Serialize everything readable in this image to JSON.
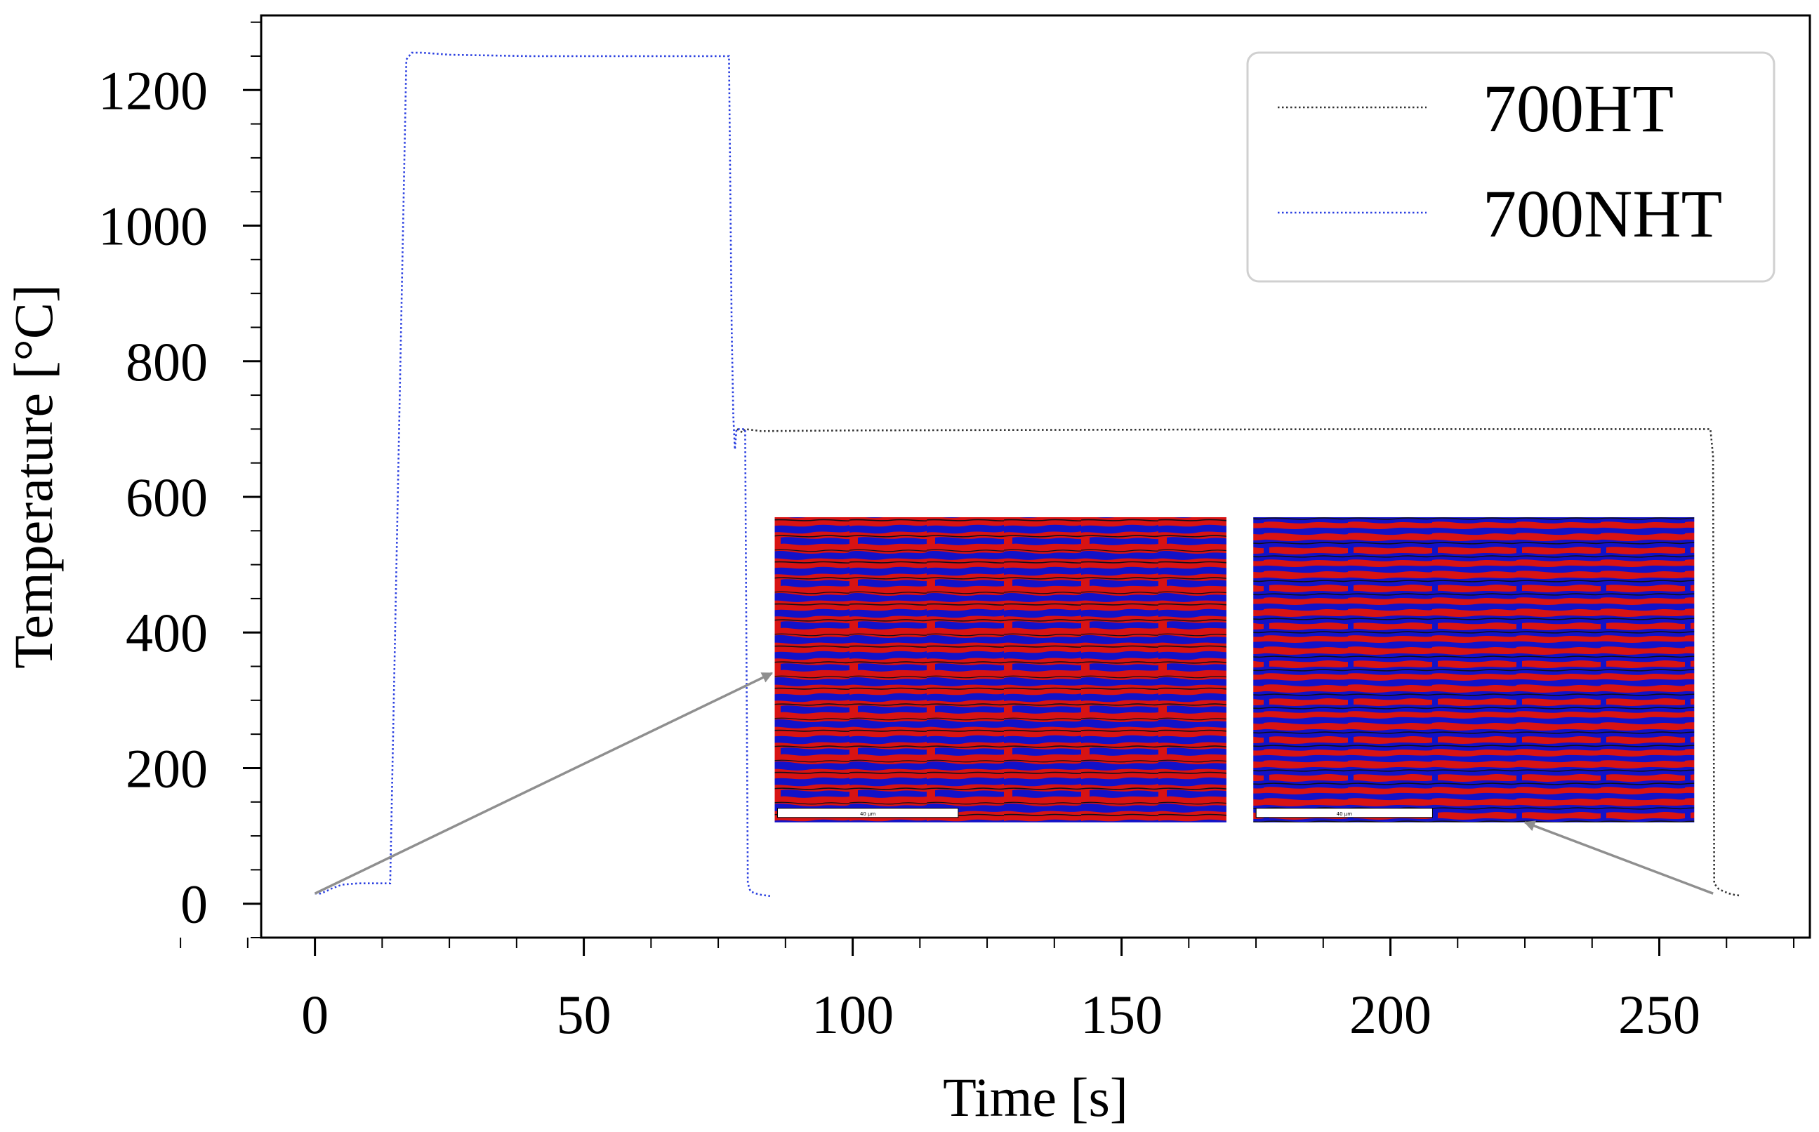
{
  "chart_data": {
    "type": "line",
    "title": "",
    "xlabel": "Time [s]",
    "ylabel": "Temperature [°C]",
    "xlim": [
      -10,
      278
    ],
    "ylim": [
      -50,
      1310
    ],
    "xticks": [
      0,
      50,
      100,
      150,
      200,
      250
    ],
    "yticks": [
      0,
      200,
      400,
      600,
      800,
      1000,
      1200
    ],
    "grid": false,
    "legend_position": "top-right",
    "series": [
      {
        "name": "700HT",
        "color": "#333333",
        "line_style": "dotted",
        "x": [
          78.5,
          79.5,
          80,
          83,
          100,
          150,
          200,
          250,
          259.5,
          260,
          260.2,
          261,
          262,
          263,
          264,
          265
        ],
        "y": [
          700,
          695,
          700,
          697,
          698,
          699,
          700,
          700,
          700,
          660,
          30,
          22,
          18,
          15,
          13,
          12
        ]
      },
      {
        "name": "700NHT",
        "color": "#2a3fe0",
        "line_style": "dotted",
        "x": [
          0,
          1,
          2,
          3,
          5,
          8,
          14,
          17,
          18,
          20,
          25,
          40,
          60,
          77,
          77.5,
          77.8,
          78.1,
          78.4,
          79,
          80,
          80.5,
          81,
          82,
          83,
          84,
          85
        ],
        "y": [
          15,
          15,
          18,
          22,
          28,
          30,
          30,
          1245,
          1255,
          1255,
          1252,
          1250,
          1250,
          1250,
          850,
          720,
          670,
          700,
          700,
          700,
          30,
          18,
          15,
          13,
          12,
          11
        ]
      }
    ],
    "annotations": [
      {
        "type": "arrow",
        "from": [
          0,
          15
        ],
        "to": [
          85,
          340
        ]
      },
      {
        "type": "arrow",
        "from": [
          260,
          15
        ],
        "to": [
          225,
          120
        ]
      }
    ],
    "insets": [
      {
        "name": "micrograph-left",
        "x_range": [
          85.5,
          169.5
        ],
        "y_range": [
          120,
          570
        ],
        "scale_bar_label": "40 µm"
      },
      {
        "name": "micrograph-right",
        "x_range": [
          174.5,
          256.5
        ],
        "y_range": [
          120,
          570
        ],
        "scale_bar_label": "40 µm"
      }
    ]
  },
  "theme": {
    "phase_red": "#d81313",
    "phase_blue": "#1212c8",
    "grain_boundary": "#101018",
    "arrow": "#8f8f8f",
    "legend_border": "#d0d0d0"
  }
}
